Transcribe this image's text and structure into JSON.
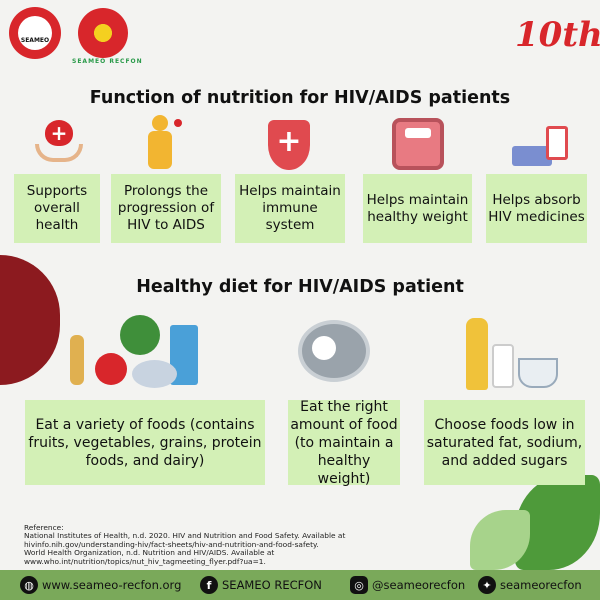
{
  "header": {
    "logo_seameo": "SEAMEO",
    "logo_recfon": "SEAMEO RECFON",
    "anniversary_badge": "10th"
  },
  "section1": {
    "title": "Function of nutrition for HIV/AIDS patients",
    "items": [
      {
        "label": "Supports overall health",
        "icon": "heart-hands-icon"
      },
      {
        "label": "Prolongs the progression of HIV to AIDS",
        "icon": "sick-person-icon"
      },
      {
        "label": "Helps maintain immune system",
        "icon": "shield-cross-icon"
      },
      {
        "label": "Helps maintain healthy weight",
        "icon": "scale-icon"
      },
      {
        "label": "Helps absorb HIV medicines",
        "icon": "medicine-icon"
      }
    ]
  },
  "section2": {
    "title": "Healthy diet for HIV/AIDS patient",
    "items": [
      {
        "label": "Eat a variety of foods (contains fruits, vegetables, grains, protein foods, and dairy)",
        "icon": "food-groups-icon"
      },
      {
        "label": "Eat the right amount of food (to maintain a healthy weight)",
        "icon": "plate-icon"
      },
      {
        "label": "Choose foods low in saturated fat, sodium, and added sugars",
        "icon": "oil-salt-sugar-icon"
      }
    ]
  },
  "reference": {
    "heading": "Reference:",
    "lines": [
      "National Institutes of Health, n.d. 2020. HIV and Nutrition and Food Safety. Available at",
      "hivinfo.nih.gov/understanding-hiv/fact-sheets/hiv-and-nutrition-and-food-safety.",
      "World Health Organization, n.d. Nutrition and HIV/AIDS. Available at",
      "www.who.int/nutrition/topics/nut_hiv_tagmeeting_flyer.pdf?ua=1."
    ]
  },
  "footer": {
    "website": "www.seameo-recfon.org",
    "facebook": "SEAMEO RECFON",
    "instagram": "@seameorecfon",
    "twitter": "seameorecfon"
  },
  "colors": {
    "box": "#d3f0b6",
    "footer": "#7aa95a",
    "accent_red": "#d8262b"
  }
}
